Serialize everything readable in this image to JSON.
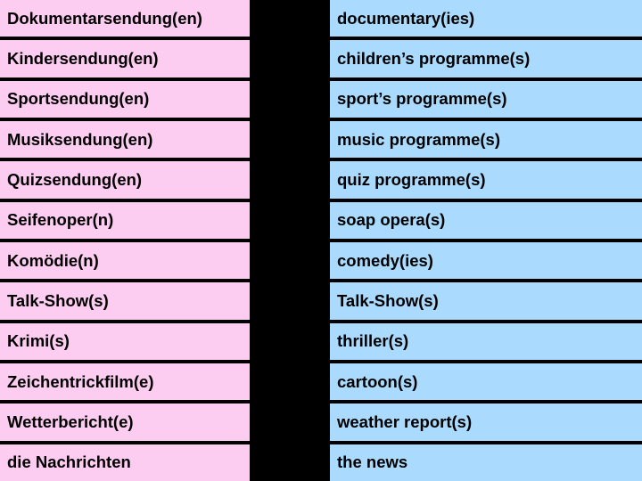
{
  "colors": {
    "pink": "#fdccf1",
    "blue": "#aadbfe",
    "black": "#000000"
  },
  "rows": [
    {
      "left_word": "Dokumentarsendung",
      "left_suffix": "(en)",
      "left_bg": "pink",
      "right": "documentary(ies)",
      "right_bg": "blue"
    },
    {
      "left_word": "Kindersendung",
      "left_suffix": "(en)",
      "left_bg": "pink",
      "right": "children’s programme(s)",
      "right_bg": "blue"
    },
    {
      "left_word": "Sportsendung",
      "left_suffix": "(en)",
      "left_bg": "pink",
      "right": "sport’s programme(s)",
      "right_bg": "blue"
    },
    {
      "left_word": "Musiksendung",
      "left_suffix": "(en)",
      "left_bg": "pink",
      "right": "music programme(s)",
      "right_bg": "blue"
    },
    {
      "left_word": "Quizsendung",
      "left_suffix": "(en)",
      "left_bg": "pink",
      "right": "quiz programme(s)",
      "right_bg": "blue"
    },
    {
      "left_word": "Seifenoper",
      "left_suffix": "(n)",
      "left_bg": "pink",
      "right": "soap opera(s)",
      "right_bg": "blue"
    },
    {
      "left_word": "Komödie",
      "left_suffix": "(n)",
      "left_bg": "pink",
      "right": "comedy(ies)",
      "right_bg": "blue"
    },
    {
      "left_word": "Talk-Show",
      "left_suffix": "(s)",
      "left_bg": "pink",
      "right": "Talk-Show(s)",
      "right_bg": "blue"
    },
    {
      "left_word": "Krimi",
      "left_suffix": "(s)",
      "left_bg": "pink",
      "right": "thriller(s)",
      "right_bg": "blue"
    },
    {
      "left_word": "Zeichentrickfilm",
      "left_suffix": "(e)",
      "left_bg": "pink",
      "right": "cartoon(s)",
      "right_bg": "blue"
    },
    {
      "left_word": "Wetterbericht",
      "left_suffix": "(e)",
      "left_bg": "pink",
      "right": "weather report(s)",
      "right_bg": "blue"
    },
    {
      "left_word": "die Nachrichten",
      "left_suffix": "",
      "left_bg": "pink",
      "right": "the news",
      "right_bg": "blue"
    }
  ]
}
